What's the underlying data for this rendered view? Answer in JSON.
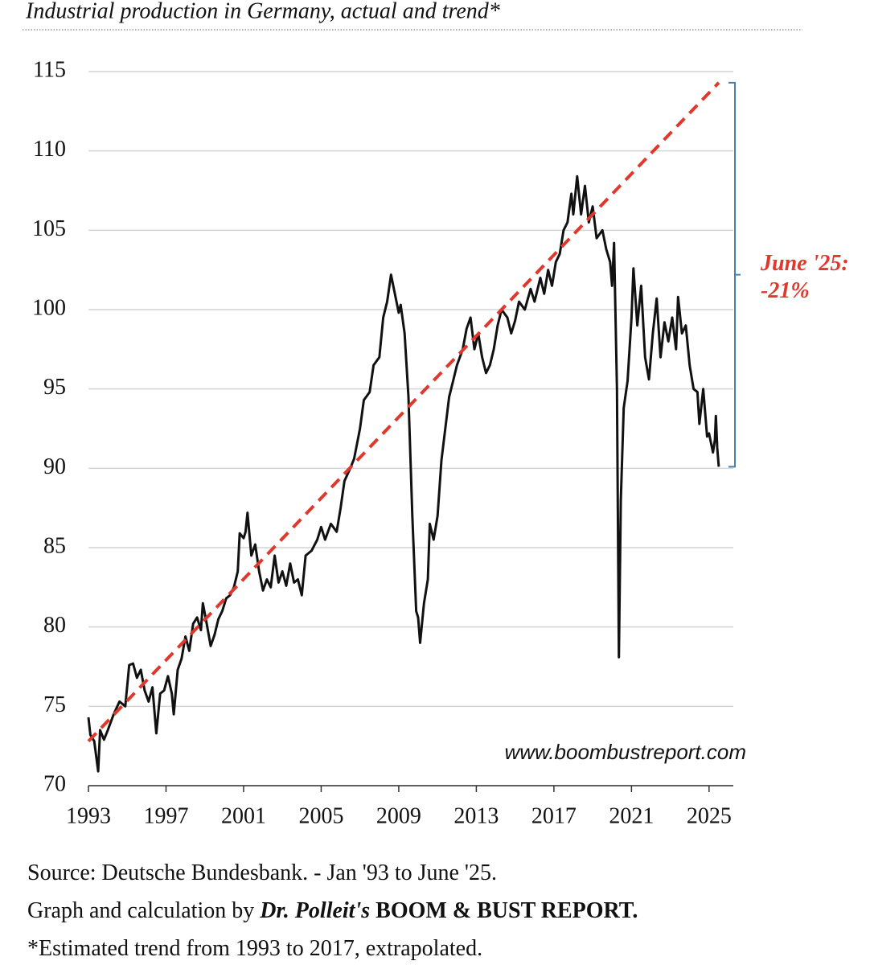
{
  "chart_data": {
    "type": "line",
    "title": "Industrial production in Germany, actual and trend*",
    "watermark": "www.boombustreport.com",
    "annotation": [
      "June '25:",
      "-21%"
    ],
    "annotation_color": "#e0382c",
    "footer": [
      [
        "Source: Deutsche Bundesbank. - Jan '93 to June '25."
      ],
      [
        "Graph and calculation by ",
        "Dr. Polleit's",
        " BOOM & BUST REPORT."
      ],
      [
        "*Estimated trend from 1993 to 2017, extrapolated."
      ]
    ],
    "xlim": [
      1993,
      2026.25
    ],
    "xticks": [
      1993,
      1997,
      2001,
      2005,
      2009,
      2013,
      2017,
      2021,
      2025
    ],
    "ylim": [
      70,
      115
    ],
    "yticks": [
      70,
      75,
      80,
      85,
      90,
      95,
      100,
      105,
      110,
      115
    ],
    "grid": true,
    "series": [
      {
        "color": "#111111",
        "style": "solid",
        "x": [
          1993.0,
          1993.1,
          1993.3,
          1993.5,
          1993.6,
          1993.8,
          1994.0,
          1994.3,
          1994.6,
          1994.9,
          1995.1,
          1995.3,
          1995.5,
          1995.7,
          1995.9,
          1996.1,
          1996.3,
          1996.5,
          1996.7,
          1996.9,
          1997.1,
          1997.3,
          1997.4,
          1997.6,
          1997.8,
          1998.0,
          1998.2,
          1998.4,
          1998.6,
          1998.8,
          1998.9,
          1999.1,
          1999.3,
          1999.5,
          1999.7,
          1999.9,
          2000.1,
          2000.3,
          2000.5,
          2000.7,
          2000.8,
          2001.0,
          2001.1,
          2001.2,
          2001.4,
          2001.6,
          2001.8,
          2002.0,
          2002.2,
          2002.4,
          2002.6,
          2002.8,
          2003.0,
          2003.2,
          2003.4,
          2003.6,
          2003.8,
          2004.0,
          2004.2,
          2004.5,
          2004.8,
          2005.0,
          2005.2,
          2005.5,
          2005.8,
          2006.0,
          2006.2,
          2006.5,
          2006.7,
          2007.0,
          2007.2,
          2007.5,
          2007.7,
          2008.0,
          2008.2,
          2008.4,
          2008.6,
          2008.8,
          2009.0,
          2009.1,
          2009.3,
          2009.5,
          2009.7,
          2009.9,
          2010.0,
          2010.1,
          2010.3,
          2010.5,
          2010.6,
          2010.8,
          2011.0,
          2011.2,
          2011.4,
          2011.6,
          2011.8,
          2012.0,
          2012.3,
          2012.5,
          2012.7,
          2012.9,
          2013.1,
          2013.3,
          2013.5,
          2013.7,
          2013.9,
          2014.1,
          2014.3,
          2014.6,
          2014.8,
          2015.0,
          2015.2,
          2015.5,
          2015.8,
          2016.0,
          2016.3,
          2016.5,
          2016.7,
          2016.9,
          2017.1,
          2017.3,
          2017.5,
          2017.7,
          2017.9,
          2018.0,
          2018.2,
          2018.4,
          2018.6,
          2018.8,
          2019.0,
          2019.2,
          2019.5,
          2019.7,
          2019.9,
          2020.0,
          2020.1,
          2020.25,
          2020.35,
          2020.45,
          2020.6,
          2020.8,
          2021.0,
          2021.1,
          2021.3,
          2021.5,
          2021.7,
          2021.9,
          2022.1,
          2022.3,
          2022.5,
          2022.7,
          2022.9,
          2023.1,
          2023.3,
          2023.4,
          2023.6,
          2023.8,
          2024.0,
          2024.2,
          2024.4,
          2024.5,
          2024.7,
          2024.9,
          2025.0,
          2025.2,
          2025.3,
          2025.35,
          2025.42,
          2025.5
        ],
        "values": [
          74.3,
          73.2,
          72.8,
          70.9,
          73.5,
          72.9,
          73.5,
          74.5,
          75.3,
          75.0,
          77.6,
          77.7,
          76.8,
          77.3,
          76.0,
          75.3,
          76.2,
          73.3,
          75.8,
          76.0,
          76.9,
          75.8,
          74.5,
          77.3,
          78.0,
          79.4,
          78.5,
          80.2,
          80.6,
          79.8,
          81.5,
          80.2,
          78.8,
          79.5,
          80.5,
          81.0,
          81.8,
          82.0,
          82.5,
          83.5,
          85.9,
          85.6,
          86.0,
          87.2,
          84.5,
          85.2,
          83.5,
          82.3,
          83.0,
          82.5,
          84.5,
          82.8,
          83.5,
          82.6,
          84.0,
          82.8,
          83.0,
          82.0,
          84.5,
          84.8,
          85.5,
          86.3,
          85.5,
          86.5,
          86.0,
          87.5,
          89.2,
          90.0,
          90.6,
          92.5,
          94.3,
          94.8,
          96.5,
          97.0,
          99.5,
          100.5,
          102.2,
          101.0,
          99.8,
          100.3,
          98.5,
          94.5,
          87.0,
          81.0,
          80.6,
          79.0,
          81.5,
          83.0,
          86.5,
          85.5,
          87.0,
          90.5,
          92.5,
          94.5,
          95.5,
          96.5,
          97.5,
          98.8,
          99.5,
          97.5,
          98.5,
          97.0,
          96.0,
          96.5,
          97.5,
          99.0,
          100.0,
          99.5,
          98.5,
          99.3,
          100.5,
          100.0,
          101.3,
          100.5,
          102.0,
          101.0,
          102.5,
          101.5,
          103.0,
          103.5,
          105.0,
          105.5,
          107.3,
          106.0,
          108.4,
          106.0,
          107.8,
          105.5,
          106.5,
          104.5,
          105.0,
          103.8,
          103.0,
          101.5,
          104.2,
          95.0,
          78.1,
          88.0,
          93.8,
          95.5,
          99.5,
          102.6,
          99.0,
          101.5,
          97.0,
          95.6,
          98.5,
          100.7,
          97.0,
          99.2,
          98.0,
          99.5,
          97.5,
          100.8,
          98.5,
          99.0,
          96.5,
          95.0,
          94.8,
          92.8,
          95.0,
          92.0,
          92.2,
          91.0,
          91.8,
          93.3,
          91.3,
          90.1
        ]
      },
      {
        "color": "#e0382c",
        "style": "dashed",
        "x": [
          1993.0,
          2025.5
        ],
        "values": [
          72.8,
          114.3
        ]
      }
    ]
  }
}
